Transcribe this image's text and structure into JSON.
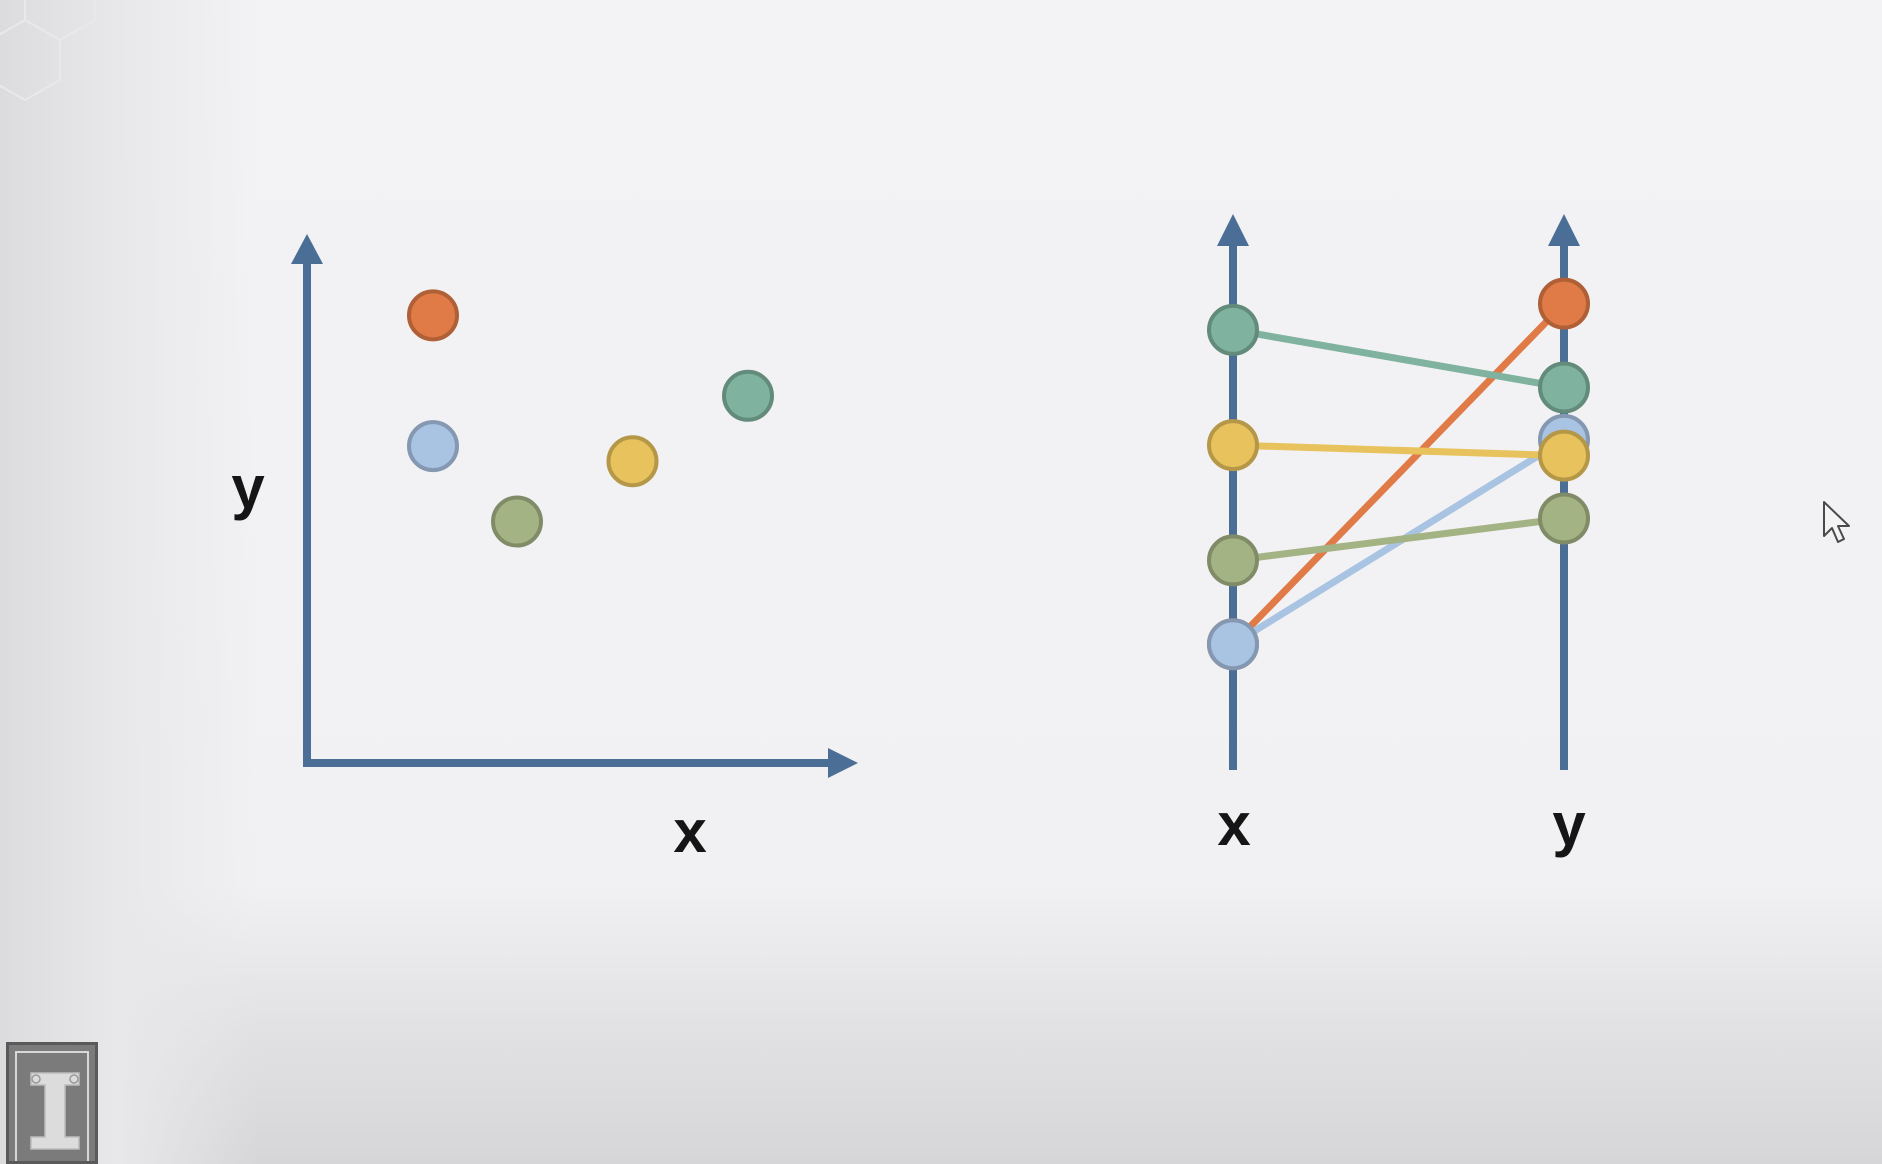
{
  "chart_data": [
    {
      "type": "scatter",
      "title": "",
      "xlabel": "x",
      "ylabel": "y",
      "xlim": [
        0,
        10
      ],
      "ylim": [
        0,
        10
      ],
      "grid": false,
      "points": [
        {
          "x": 2.4,
          "y": 8.9,
          "color": "#e07b47"
        },
        {
          "x": 2.4,
          "y": 6.3,
          "color": "#a9c3e3"
        },
        {
          "x": 4.0,
          "y": 4.8,
          "color": "#a4b384"
        },
        {
          "x": 6.2,
          "y": 6.0,
          "color": "#e8c25c"
        },
        {
          "x": 8.4,
          "y": 7.3,
          "color": "#7fb29f"
        }
      ]
    },
    {
      "type": "parallel_coordinates",
      "title": "",
      "axes": [
        "x",
        "y"
      ],
      "ylim": [
        0,
        10
      ],
      "grid": false,
      "lines": [
        {
          "values": [
            2.4,
            8.9
          ],
          "color": "#e07b47"
        },
        {
          "values": [
            2.4,
            6.3
          ],
          "color": "#a9c3e3"
        },
        {
          "values": [
            4.0,
            4.8
          ],
          "color": "#a4b384"
        },
        {
          "values": [
            6.2,
            6.0
          ],
          "color": "#e8c25c"
        },
        {
          "values": [
            8.4,
            7.3
          ],
          "color": "#7fb29f"
        }
      ]
    }
  ],
  "colors": {
    "axis": "#4a6e95",
    "text": "#151515"
  },
  "decorations": {
    "logo": "university-block-i-logo",
    "cursor": "mouse-pointer-icon"
  }
}
